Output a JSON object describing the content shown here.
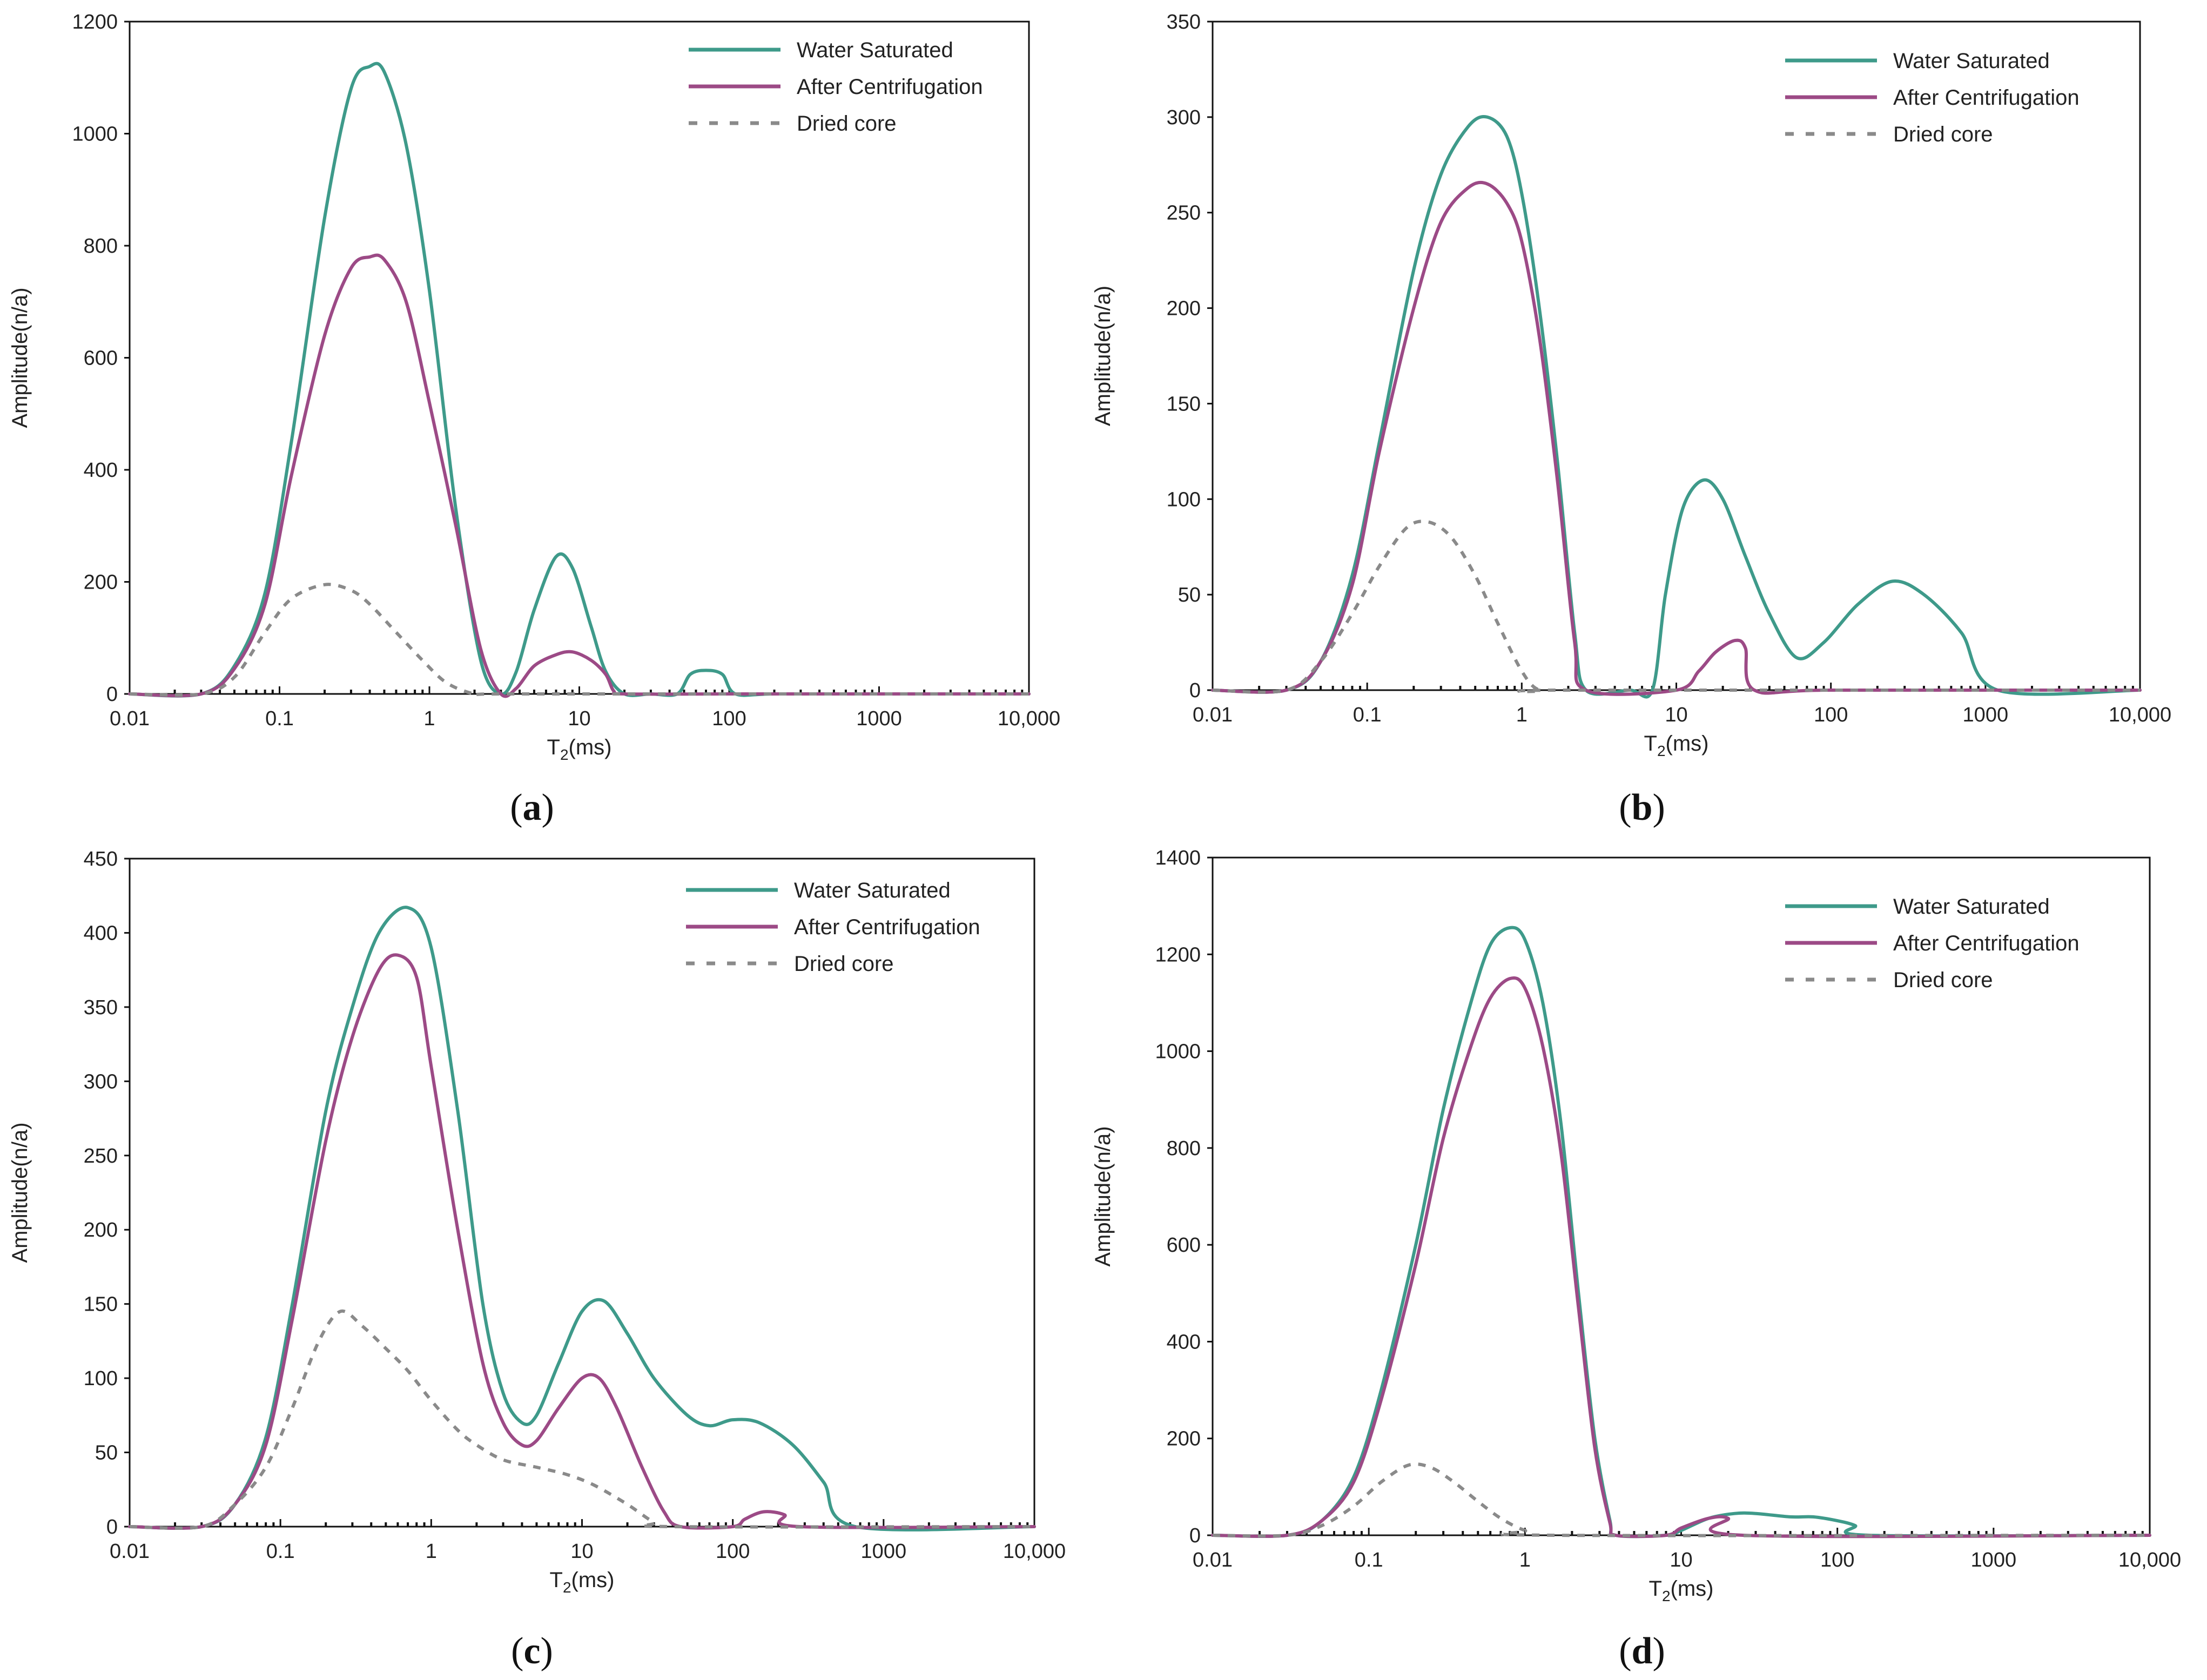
{
  "colors": {
    "water_saturated": "#3E9A8A",
    "after_centrifugation": "#9C4A86",
    "dried_core": "#8A8A8A",
    "axis": "#111111"
  },
  "chart_data": [
    {
      "id": "a",
      "panel_label": "a",
      "type": "line",
      "x_scale": "log",
      "xlim": [
        0.01,
        10000
      ],
      "ylim": [
        0,
        1200
      ],
      "x_tick_labels": [
        "0.01",
        "0.1",
        "1",
        "10",
        "100",
        "1000",
        "10,000"
      ],
      "y_ticks": [
        0,
        200,
        400,
        600,
        800,
        1000,
        1200
      ],
      "xlabel_main": "T",
      "xlabel_sub": "2",
      "xlabel_unit": "(ms)",
      "ylabel": "Amplitude(n/a)",
      "legend_position": "top-right",
      "series": [
        {
          "name": "Water Saturated",
          "style": "solid",
          "x": [
            0.01,
            0.03,
            0.05,
            0.08,
            0.12,
            0.2,
            0.3,
            0.4,
            0.5,
            0.7,
            1.0,
            1.5,
            2.2,
            3.0,
            3.8,
            5.0,
            7.0,
            9.0,
            12,
            15,
            20,
            30,
            45,
            55,
            70,
            90,
            110,
            200,
            1000,
            10000
          ],
          "y": [
            0,
            0,
            50,
            180,
            450,
            850,
            1080,
            1120,
            1110,
            980,
            720,
            330,
            60,
            0,
            40,
            150,
            245,
            225,
            120,
            40,
            0,
            0,
            0,
            35,
            42,
            35,
            0,
            0,
            0,
            0
          ]
        },
        {
          "name": "After Centrifugation",
          "style": "solid",
          "x": [
            0.01,
            0.03,
            0.05,
            0.08,
            0.12,
            0.2,
            0.3,
            0.4,
            0.5,
            0.7,
            1.0,
            1.5,
            2.2,
            3.0,
            3.8,
            5.0,
            7.0,
            9.0,
            12,
            15,
            17,
            20,
            100,
            1000,
            10000
          ],
          "y": [
            0,
            0,
            45,
            160,
            390,
            640,
            760,
            780,
            775,
            700,
            520,
            300,
            80,
            0,
            10,
            50,
            70,
            75,
            60,
            35,
            5,
            0,
            0,
            0,
            0
          ]
        },
        {
          "name": "Dried core",
          "style": "dashed",
          "x": [
            0.01,
            0.03,
            0.05,
            0.08,
            0.12,
            0.2,
            0.3,
            0.4,
            0.6,
            0.9,
            1.3,
            2.0,
            3.0,
            100,
            10000
          ],
          "y": [
            0,
            0,
            30,
            110,
            170,
            195,
            185,
            160,
            110,
            60,
            20,
            0,
            0,
            0,
            0
          ]
        }
      ]
    },
    {
      "id": "b",
      "panel_label": "b",
      "type": "line",
      "x_scale": "log",
      "xlim": [
        0.01,
        10000
      ],
      "ylim": [
        0,
        350
      ],
      "x_tick_labels": [
        "0.01",
        "0.1",
        "1",
        "10",
        "100",
        "1000",
        "10,000"
      ],
      "y_ticks": [
        0,
        50,
        100,
        150,
        200,
        250,
        300,
        350
      ],
      "xlabel_main": "T",
      "xlabel_sub": "2",
      "xlabel_unit": "(ms)",
      "ylabel": "Amplitude(n/a)",
      "legend_position": "top-right",
      "series": [
        {
          "name": "Water Saturated",
          "style": "solid",
          "x": [
            0.01,
            0.03,
            0.05,
            0.08,
            0.12,
            0.2,
            0.3,
            0.45,
            0.6,
            0.8,
            1.0,
            1.3,
            1.7,
            2.2,
            2.6,
            5.0,
            7.0,
            8.5,
            11,
            15,
            20,
            28,
            40,
            60,
            90,
            150,
            250,
            400,
            700,
            1200,
            10000
          ],
          "y": [
            0,
            0,
            15,
            60,
            130,
            220,
            270,
            295,
            300,
            290,
            260,
            200,
            120,
            30,
            0,
            0,
            0,
            50,
            95,
            110,
            100,
            70,
            40,
            17,
            25,
            45,
            57,
            50,
            30,
            0,
            0
          ]
        },
        {
          "name": "After Centrifugation",
          "style": "solid",
          "x": [
            0.01,
            0.03,
            0.05,
            0.08,
            0.12,
            0.2,
            0.3,
            0.45,
            0.6,
            0.8,
            1.0,
            1.3,
            1.7,
            2.2,
            2.6,
            10,
            14,
            18,
            24,
            28,
            32,
            100,
            10000
          ],
          "y": [
            0,
            0,
            15,
            55,
            125,
            200,
            245,
            263,
            265,
            255,
            235,
            185,
            110,
            25,
            0,
            0,
            10,
            20,
            26,
            22,
            0,
            0,
            0
          ]
        },
        {
          "name": "Dried core",
          "style": "dashed",
          "x": [
            0.01,
            0.03,
            0.05,
            0.08,
            0.12,
            0.18,
            0.25,
            0.35,
            0.5,
            0.7,
            1.0,
            1.3,
            2.0,
            10000
          ],
          "y": [
            0,
            0,
            15,
            40,
            65,
            85,
            88,
            80,
            60,
            35,
            10,
            0,
            0,
            0
          ]
        }
      ]
    },
    {
      "id": "c",
      "panel_label": "c",
      "type": "line",
      "x_scale": "log",
      "xlim": [
        0.01,
        10000
      ],
      "ylim": [
        0,
        450
      ],
      "x_tick_labels": [
        "0.01",
        "0.1",
        "1",
        "10",
        "100",
        "1000",
        "10,000"
      ],
      "y_ticks": [
        0,
        50,
        100,
        150,
        200,
        250,
        300,
        350,
        400,
        450
      ],
      "xlabel_main": "T",
      "xlabel_sub": "2",
      "xlabel_unit": "(ms)",
      "ylabel": "Amplitude(n/a)",
      "legend_position": "top-right",
      "series": [
        {
          "name": "Water Saturated",
          "style": "solid",
          "x": [
            0.01,
            0.03,
            0.05,
            0.08,
            0.12,
            0.2,
            0.3,
            0.45,
            0.7,
            1.0,
            1.5,
            2.2,
            3.0,
            4.0,
            5.0,
            7.0,
            10,
            14,
            20,
            30,
            50,
            70,
            100,
            150,
            250,
            400,
            650,
            10000
          ],
          "y": [
            0,
            0,
            15,
            60,
            150,
            280,
            350,
            400,
            417,
            390,
            280,
            150,
            90,
            70,
            75,
            110,
            145,
            152,
            130,
            100,
            75,
            68,
            72,
            70,
            55,
            30,
            0,
            0
          ]
        },
        {
          "name": "After Centrifugation",
          "style": "solid",
          "x": [
            0.01,
            0.03,
            0.05,
            0.08,
            0.12,
            0.2,
            0.3,
            0.45,
            0.6,
            0.8,
            1.0,
            1.5,
            2.2,
            3.0,
            4.0,
            5.0,
            7.0,
            10,
            13,
            17,
            25,
            35,
            45,
            100,
            120,
            160,
            220,
            280,
            10000
          ],
          "y": [
            0,
            0,
            15,
            55,
            140,
            260,
            330,
            375,
            385,
            370,
            310,
            200,
            110,
            70,
            55,
            58,
            80,
            100,
            100,
            80,
            40,
            10,
            0,
            0,
            5,
            10,
            8,
            0,
            0
          ]
        },
        {
          "name": "Dried core",
          "style": "dashed",
          "x": [
            0.01,
            0.03,
            0.05,
            0.08,
            0.12,
            0.18,
            0.25,
            0.35,
            0.5,
            0.7,
            1.0,
            1.5,
            2.0,
            3.0,
            5.0,
            8.0,
            12,
            20,
            30,
            40,
            10000
          ],
          "y": [
            0,
            0,
            15,
            40,
            80,
            125,
            145,
            135,
            120,
            105,
            85,
            65,
            55,
            45,
            40,
            35,
            28,
            15,
            3,
            0,
            0
          ]
        }
      ]
    },
    {
      "id": "d",
      "panel_label": "d",
      "type": "line",
      "x_scale": "log",
      "xlim": [
        0.01,
        10000
      ],
      "ylim": [
        0,
        1400
      ],
      "x_tick_labels": [
        "0.01",
        "0.1",
        "1",
        "10",
        "100",
        "1000",
        "10,000"
      ],
      "y_ticks": [
        0,
        200,
        400,
        600,
        800,
        1000,
        1200,
        1400
      ],
      "xlabel_main": "T",
      "xlabel_sub": "2",
      "xlabel_unit": "(ms)",
      "ylabel": "Amplitude(n/a)",
      "legend_position": "top-right",
      "series": [
        {
          "name": "Water Saturated",
          "style": "solid",
          "x": [
            0.01,
            0.03,
            0.05,
            0.08,
            0.12,
            0.2,
            0.3,
            0.45,
            0.6,
            0.8,
            1.0,
            1.3,
            1.7,
            2.2,
            2.8,
            3.5,
            3.8,
            8,
            10,
            15,
            22,
            30,
            50,
            70,
            100,
            130,
            160,
            10000
          ],
          "y": [
            0,
            0,
            30,
            120,
            300,
            600,
            880,
            1100,
            1220,
            1255,
            1230,
            1100,
            850,
            500,
            200,
            30,
            0,
            0,
            10,
            35,
            45,
            45,
            38,
            38,
            30,
            20,
            0,
            0
          ]
        },
        {
          "name": "After Centrifugation",
          "style": "solid",
          "x": [
            0.01,
            0.03,
            0.05,
            0.08,
            0.12,
            0.2,
            0.3,
            0.45,
            0.6,
            0.8,
            1.0,
            1.3,
            1.7,
            2.2,
            2.8,
            3.5,
            3.8,
            8,
            10,
            15,
            20,
            25,
            10000
          ],
          "y": [
            0,
            0,
            30,
            110,
            280,
            560,
            820,
            1010,
            1110,
            1150,
            1130,
            1010,
            790,
            470,
            180,
            25,
            0,
            0,
            15,
            35,
            35,
            0,
            0
          ]
        },
        {
          "name": "Dried core",
          "style": "dashed",
          "x": [
            0.01,
            0.03,
            0.05,
            0.08,
            0.12,
            0.18,
            0.25,
            0.35,
            0.5,
            0.7,
            1.0,
            1.5,
            10000
          ],
          "y": [
            0,
            0,
            20,
            60,
            110,
            145,
            140,
            110,
            70,
            35,
            10,
            0,
            0
          ]
        }
      ]
    }
  ]
}
